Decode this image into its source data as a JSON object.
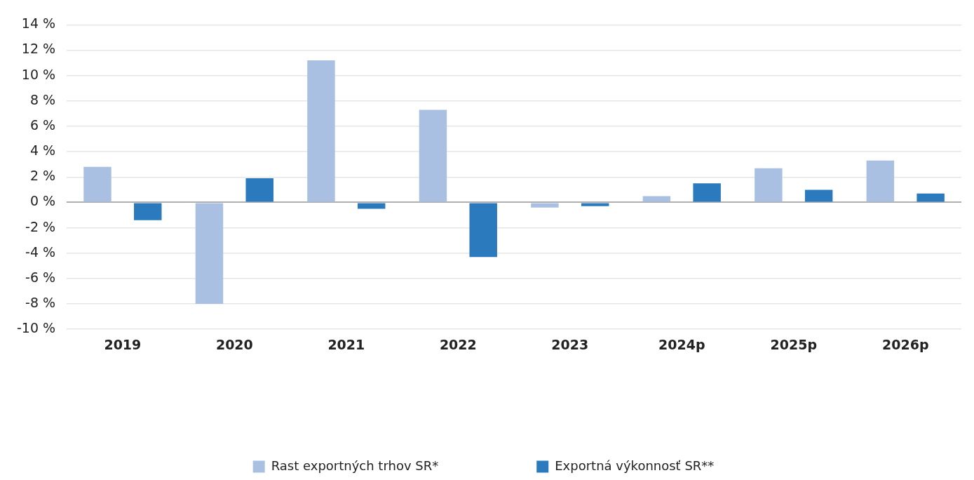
{
  "chart_data": {
    "type": "bar",
    "categories": [
      "2019",
      "2020",
      "2021",
      "2022",
      "2023",
      "2024p",
      "2025p",
      "2026p"
    ],
    "series": [
      {
        "name": "Rast exportných trhov SR*",
        "color": "#a9c0e2",
        "values": [
          2.8,
          -8.0,
          11.2,
          7.3,
          -0.4,
          0.5,
          2.7,
          3.3
        ]
      },
      {
        "name": "Exportná výkonnosť SR**",
        "color": "#2a7abd",
        "values": [
          -1.4,
          1.9,
          -0.5,
          -4.3,
          -0.3,
          1.5,
          1.0,
          0.7
        ]
      }
    ],
    "ylim": [
      -10,
      14
    ],
    "yticks": [
      {
        "value": -10,
        "label": "-10 %"
      },
      {
        "value": -8,
        "label": "-8 %"
      },
      {
        "value": -6,
        "label": "-6 %"
      },
      {
        "value": -4,
        "label": "-4 %"
      },
      {
        "value": -2,
        "label": "-2 %"
      },
      {
        "value": 0,
        "label": "0 %"
      },
      {
        "value": 2,
        "label": "2 %"
      },
      {
        "value": 4,
        "label": "4 %"
      },
      {
        "value": 6,
        "label": "6 %"
      },
      {
        "value": 8,
        "label": "8 %"
      },
      {
        "value": 10,
        "label": "10 %"
      },
      {
        "value": 12,
        "label": "12 %"
      },
      {
        "value": 14,
        "label": "14 %"
      }
    ],
    "grid": "y",
    "legend": "bottom"
  }
}
